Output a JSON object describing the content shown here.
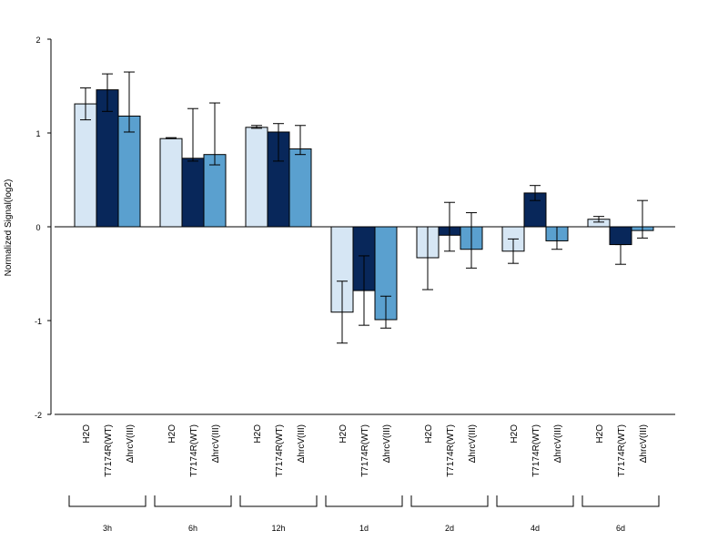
{
  "chart_data": {
    "type": "bar",
    "ylabel": "Normalized Signal(log2)",
    "ylim": [
      -2,
      2
    ],
    "yticks": [
      "-2",
      "-1",
      "0",
      "1",
      "2"
    ],
    "grouped": true,
    "error_bars": true,
    "groups": [
      "3h",
      "6h",
      "12h",
      "1d",
      "2d",
      "4d",
      "6d"
    ],
    "bar_labels": [
      "H2O",
      "T7174R(WT)",
      "ΔhrcV(III)"
    ],
    "series": [
      {
        "name": "H2O",
        "color": "#d6e6f4",
        "values": [
          1.31,
          0.94,
          1.06,
          -0.91,
          -0.33,
          -0.26,
          0.08
        ],
        "err_low": [
          1.14,
          0.94,
          1.05,
          -1.24,
          -0.67,
          -0.39,
          0.05
        ],
        "err_high": [
          1.48,
          0.95,
          1.08,
          -0.58,
          0.0,
          -0.13,
          0.11
        ]
      },
      {
        "name": "T7174R(WT)",
        "color": "#08275a",
        "values": [
          1.46,
          0.73,
          1.01,
          -0.68,
          -0.09,
          0.36,
          -0.19
        ],
        "err_low": [
          1.23,
          0.7,
          0.7,
          -1.05,
          -0.26,
          0.28,
          -0.4
        ],
        "err_high": [
          1.63,
          1.26,
          1.1,
          -0.31,
          0.26,
          0.44,
          -0.19
        ]
      },
      {
        "name": "ΔhrcV(III)",
        "color": "#5aa0cf",
        "values": [
          1.18,
          0.77,
          0.83,
          -0.99,
          -0.24,
          -0.15,
          -0.04
        ],
        "err_low": [
          1.01,
          0.66,
          0.77,
          -1.08,
          -0.44,
          -0.24,
          -0.12
        ],
        "err_high": [
          1.65,
          1.32,
          1.08,
          -0.74,
          0.15,
          0.0,
          0.28
        ]
      }
    ]
  }
}
